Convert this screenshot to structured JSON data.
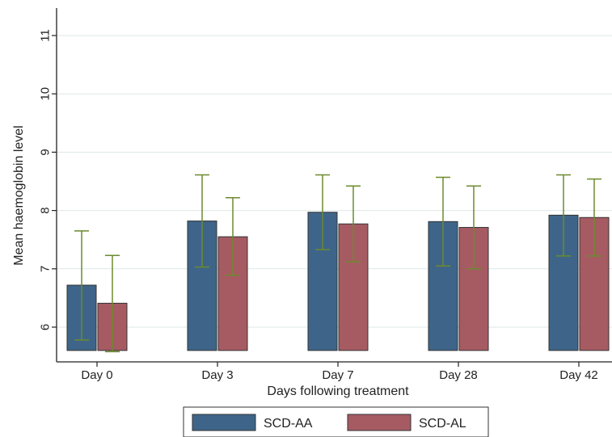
{
  "chart_data": {
    "type": "bar",
    "title": "",
    "xlabel": "Days following treatment",
    "ylabel": "Mean haemoglobin level",
    "categories": [
      "Day 0",
      "Day 3",
      "Day 7",
      "Day 28",
      "Day 42"
    ],
    "ylim": [
      5.6,
      11.4
    ],
    "yticks": [
      6,
      7,
      8,
      9,
      10,
      11
    ],
    "ytick_labels": [
      "6",
      "7",
      "8",
      "9",
      "10",
      "11"
    ],
    "grid": true,
    "legend_position": "bottom",
    "series": [
      {
        "name": "SCD-AA",
        "color": "#3e6589",
        "values": [
          6.72,
          7.82,
          7.97,
          7.81,
          7.92
        ],
        "err_low": [
          5.78,
          7.03,
          7.33,
          7.05,
          7.22
        ],
        "err_high": [
          7.65,
          8.61,
          8.61,
          8.57,
          8.61
        ]
      },
      {
        "name": "SCD-AL",
        "color": "#a65b63",
        "values": [
          6.41,
          7.55,
          7.77,
          7.71,
          7.88
        ],
        "err_low": [
          5.58,
          6.89,
          7.12,
          7.0,
          7.22
        ],
        "err_high": [
          7.23,
          8.22,
          8.42,
          8.42,
          8.54
        ]
      }
    ],
    "error_bar_color": "#6c8a2d",
    "grid_color": "#dde8e8"
  }
}
